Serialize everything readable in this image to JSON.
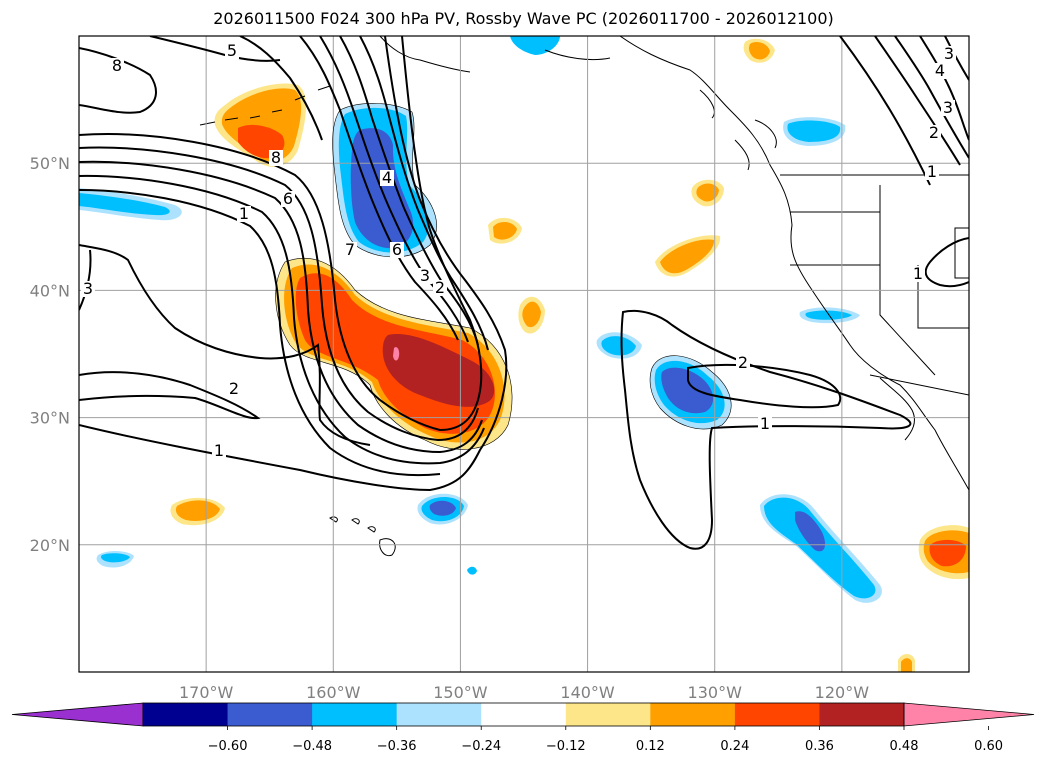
{
  "title": "2026011500 F024 300 hPa PV, Rossby Wave PC (2026011700 - 2026012100)",
  "map": {
    "lon_range": [
      -180,
      -110
    ],
    "lat_range": [
      10,
      60
    ],
    "lon_ticks": [
      {
        "value": -170,
        "label": "170°W"
      },
      {
        "value": -160,
        "label": "160°W"
      },
      {
        "value": -150,
        "label": "150°W"
      },
      {
        "value": -140,
        "label": "140°W"
      },
      {
        "value": -130,
        "label": "130°W"
      },
      {
        "value": -120,
        "label": "120°W"
      }
    ],
    "lat_ticks": [
      {
        "value": 20,
        "label": "20°N"
      },
      {
        "value": 30,
        "label": "30°N"
      },
      {
        "value": 40,
        "label": "40°N"
      },
      {
        "value": 50,
        "label": "50°N"
      }
    ],
    "grid": true,
    "contour_labels": [
      "8",
      "5",
      "8",
      "6",
      "1",
      "7",
      "4",
      "3",
      "2",
      "6",
      "3",
      "2",
      "1",
      "2",
      "1",
      "4",
      "3",
      "2",
      "1",
      "1",
      "3"
    ]
  },
  "colorbar": {
    "orientation": "horizontal",
    "extend": "both",
    "colors": [
      "#9b30d0",
      "#000090",
      "#3a5cd0",
      "#00bfff",
      "#ade2ff",
      "#ffffff",
      "#fde68a",
      "#ffa000",
      "#ff4500",
      "#b22222",
      "#ff82a8"
    ],
    "tick_labels": [
      "−0.60",
      "−0.48",
      "−0.36",
      "−0.24",
      "−0.12",
      "0.12",
      "0.24",
      "0.36",
      "0.48",
      "0.60"
    ]
  }
}
